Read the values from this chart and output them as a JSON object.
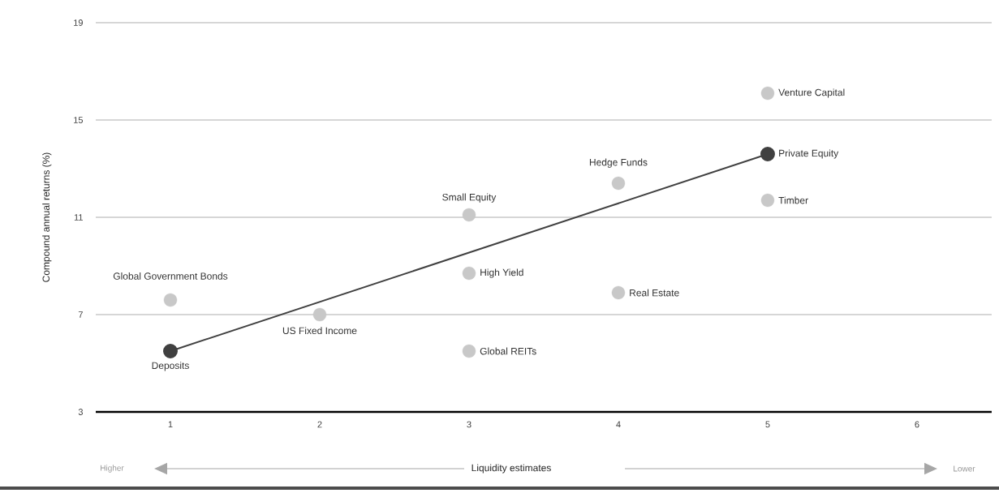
{
  "chart_data": {
    "type": "scatter",
    "xlabel": "Liquidity estimates",
    "ylabel": "Compound annual returns (%)",
    "xlim": [
      0.5,
      6.5
    ],
    "ylim": [
      3,
      19
    ],
    "xticks": [
      1,
      2,
      3,
      4,
      5,
      6
    ],
    "yticks": [
      3,
      7,
      11,
      15,
      19
    ],
    "grid": "y",
    "marker": "circle",
    "series": [
      {
        "color": "#c8c8c8",
        "x": [
          1,
          2,
          3,
          3,
          3,
          4,
          4,
          5,
          5
        ],
        "values": [
          7.6,
          7.0,
          11.1,
          8.7,
          5.5,
          12.4,
          7.9,
          16.1,
          11.7
        ]
      },
      {
        "type": "line",
        "color": "#404040",
        "line_style": "solid",
        "x": [
          1,
          5
        ],
        "values": [
          5.5,
          13.6
        ]
      }
    ],
    "annotations": [
      {
        "text": "Global Government Bonds",
        "x": 1,
        "y": 7.6
      },
      {
        "text": "Deposits",
        "x": 1,
        "y": 5.5
      },
      {
        "text": "US Fixed Income",
        "x": 2,
        "y": 7.0
      },
      {
        "text": "Small Equity",
        "x": 3,
        "y": 11.1
      },
      {
        "text": "High Yield",
        "x": 3,
        "y": 8.7
      },
      {
        "text": "Global REITs",
        "x": 3,
        "y": 5.5
      },
      {
        "text": "Hedge Funds",
        "x": 4,
        "y": 12.4
      },
      {
        "text": "Real Estate",
        "x": 4,
        "y": 7.9
      },
      {
        "text": "Venture Capital",
        "x": 5,
        "y": 16.1
      },
      {
        "text": "Private Equity",
        "x": 5,
        "y": 13.6
      },
      {
        "text": "Timber",
        "x": 5,
        "y": 11.7
      },
      "Higher",
      "Lower"
    ]
  }
}
